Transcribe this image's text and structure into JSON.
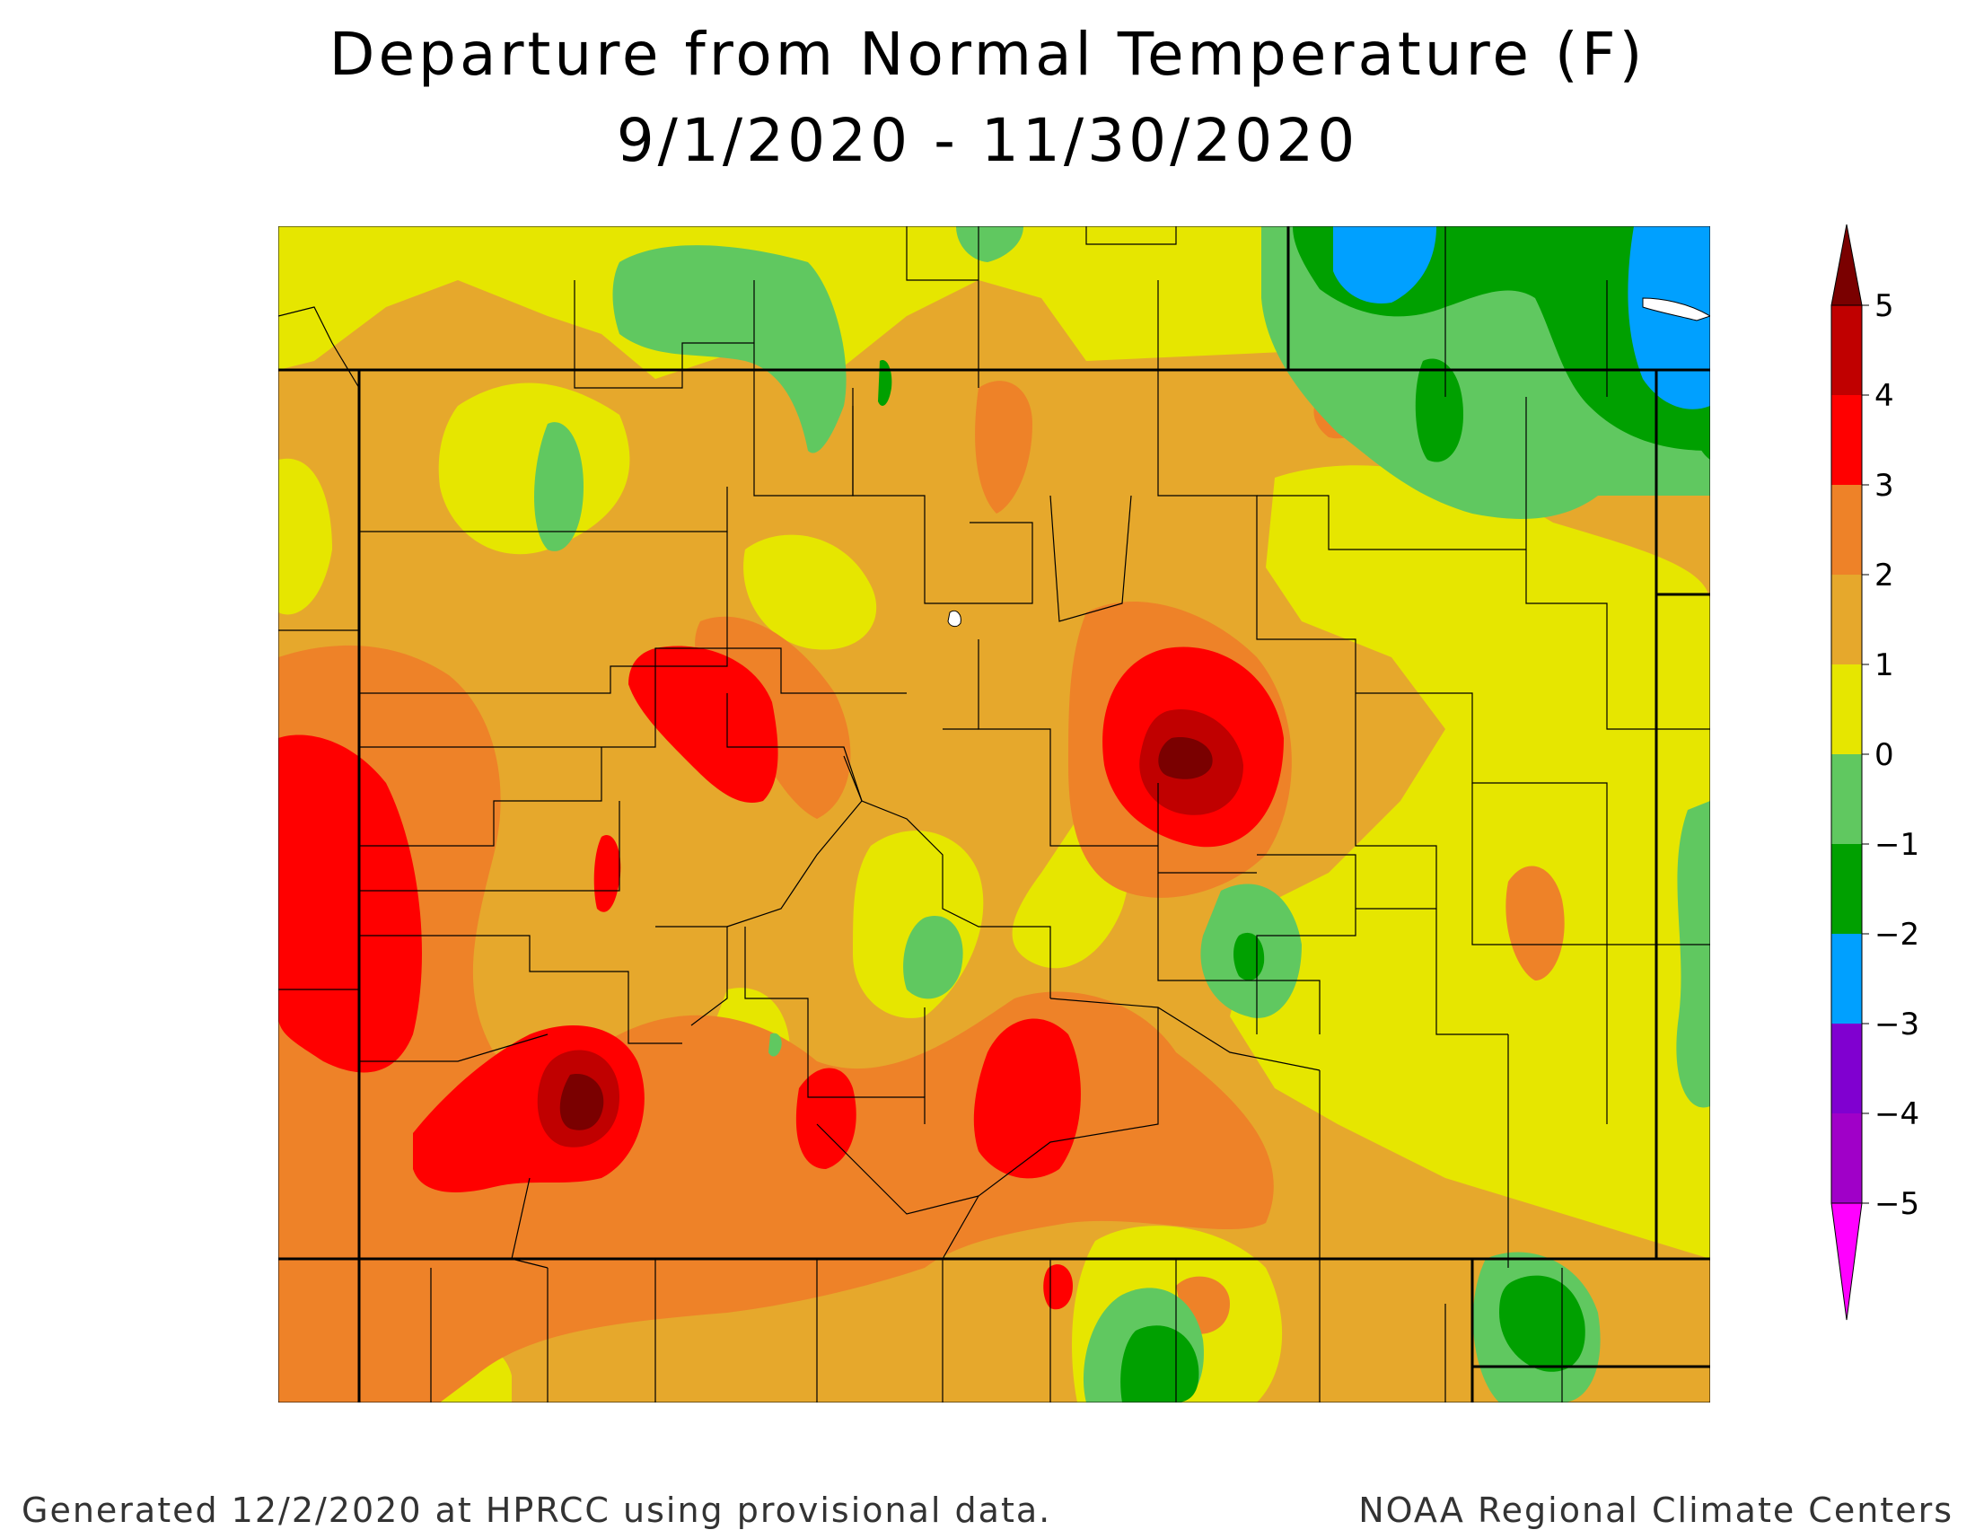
{
  "title_line1": "Departure from Normal Temperature (F)",
  "title_line2": "9/1/2020 - 11/30/2020",
  "footer_left": "Generated 12/2/2020 at HPRCC using provisional data.",
  "footer_right": "NOAA Regional Climate Centers",
  "legend": {
    "ticks": [
      "5",
      "4",
      "3",
      "2",
      "1",
      "0",
      "−1",
      "−2",
      "−3",
      "−4",
      "−5"
    ],
    "colors_top_to_bottom": [
      "#7a0000",
      "#c00000",
      "#ff0000",
      "#ee8228",
      "#e6a82c",
      "#e6e600",
      "#60c860",
      "#00a000",
      "#00a0ff",
      "#8000d0",
      "#a000c8",
      "#ff00ff"
    ],
    "bins": [
      {
        "range": ">5",
        "color": "#7a0000"
      },
      {
        "range": "4 to 5",
        "color": "#c00000"
      },
      {
        "range": "3 to 4",
        "color": "#ff0000"
      },
      {
        "range": "2 to 3",
        "color": "#ee8228"
      },
      {
        "range": "1 to 2",
        "color": "#e6a82c"
      },
      {
        "range": "0 to 1",
        "color": "#e6e600"
      },
      {
        "range": "-1 to 0",
        "color": "#60c860"
      },
      {
        "range": "-2 to -1",
        "color": "#00a000"
      },
      {
        "range": "-3 to -2",
        "color": "#00a0ff"
      },
      {
        "range": "-4 to -3",
        "color": "#8000d0"
      },
      {
        "range": "-5 to -4",
        "color": "#a000c8"
      },
      {
        "range": "<-5",
        "color": "#ff00ff"
      }
    ]
  }
}
